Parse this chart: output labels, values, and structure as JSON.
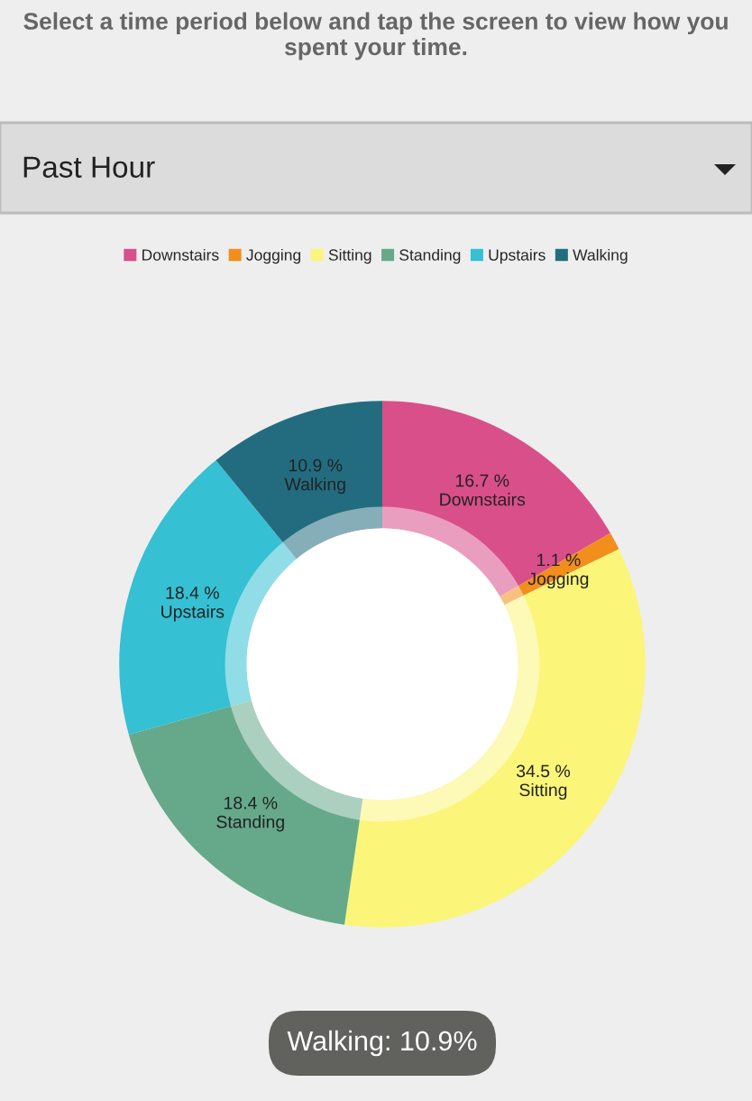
{
  "chart_data": {
    "type": "donut",
    "title": "Select a time period below and tap the screen to view how you spent your time.",
    "subtitle": "Past Hour",
    "categories": [
      "Downstairs",
      "Jogging",
      "Sitting",
      "Standing",
      "Upstairs",
      "Walking"
    ],
    "values": [
      16.7,
      1.1,
      34.5,
      18.4,
      18.4,
      10.9
    ],
    "colors": [
      "#d94f8a",
      "#f28e1c",
      "#fbf57a",
      "#66a98a",
      "#35c0d3",
      "#236c80"
    ],
    "value_labels": [
      "16.7 %",
      "1.1 %",
      "34.5 %",
      "18.4 %",
      "18.4 %",
      "10.9 %"
    ],
    "legend": "top",
    "annotations": [
      "Walking: 10.9%"
    ]
  }
}
